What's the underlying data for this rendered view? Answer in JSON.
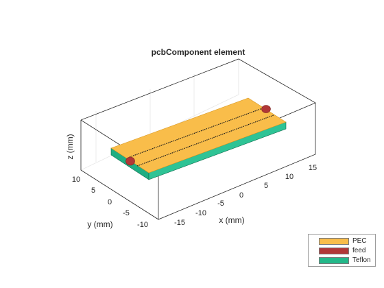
{
  "figure": {
    "title": "pcbComponent element",
    "xlabel": "x (mm)",
    "ylabel": "y (mm)",
    "zlabel": "z (mm)",
    "x_ticks": [
      "-15",
      "-10",
      "-5",
      "0",
      "5",
      "10",
      "15"
    ],
    "y_ticks": [
      "-10",
      "-5",
      "0",
      "5",
      "10"
    ],
    "z_ticks": []
  },
  "legend": {
    "placement": "bottom-right",
    "items": [
      {
        "label": "PEC",
        "color": "#f9bd4a"
      },
      {
        "label": "feed",
        "color": "#b13737"
      },
      {
        "label": "Teflon",
        "color": "#23b889"
      }
    ]
  },
  "colors": {
    "pec": "#f9bd4a",
    "pec_edge": "#d99a27",
    "feed": "#b13737",
    "teflon_front": "#1fae82",
    "teflon_side": "#2ec395",
    "teflon_edge": "#0e6a4c",
    "trace": "#1a1a1a"
  }
}
